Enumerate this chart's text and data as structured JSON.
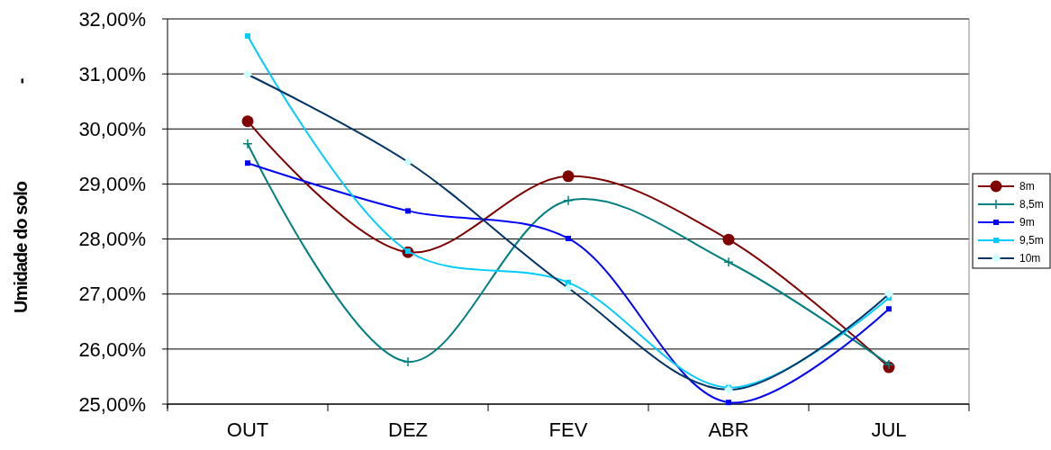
{
  "chart_data": {
    "type": "line",
    "ylabel": "Umidade do solo",
    "annotations": [
      "-"
    ],
    "categories": [
      "OUT",
      "DEZ",
      "FEV",
      "ABR",
      "JUL"
    ],
    "series": [
      {
        "name": "8m",
        "color": "#800000",
        "marker": "circle",
        "values": [
          30.14,
          27.76,
          29.14,
          27.99,
          25.67
        ]
      },
      {
        "name": "8,5m",
        "color": "#008080",
        "marker": "cross",
        "values": [
          29.73,
          25.77,
          28.7,
          27.58,
          25.72
        ]
      },
      {
        "name": "9m",
        "color": "#0000ff",
        "marker": "square",
        "values": [
          29.38,
          28.51,
          28.01,
          25.03,
          26.73
        ]
      },
      {
        "name": "9,5m",
        "color": "#00ccff",
        "marker": "square",
        "values": [
          31.69,
          27.78,
          27.21,
          25.3,
          26.93
        ]
      },
      {
        "name": "10m",
        "color": "#003366",
        "marker": "diamond",
        "values": [
          30.99,
          29.4,
          27.11,
          25.26,
          27.0
        ]
      }
    ],
    "ylim": [
      25,
      32
    ],
    "yticks": [
      {
        "value": 25,
        "label": "25,00%"
      },
      {
        "value": 26,
        "label": "26,00%"
      },
      {
        "value": 27,
        "label": "27,00%"
      },
      {
        "value": 28,
        "label": "28,00%"
      },
      {
        "value": 29,
        "label": "29,00%"
      },
      {
        "value": 30,
        "label": "30,00%"
      },
      {
        "value": 31,
        "label": "31,00%"
      },
      {
        "value": 32,
        "label": "32,00%"
      }
    ],
    "grid": "y",
    "legend": "right",
    "line_style": "solid"
  }
}
